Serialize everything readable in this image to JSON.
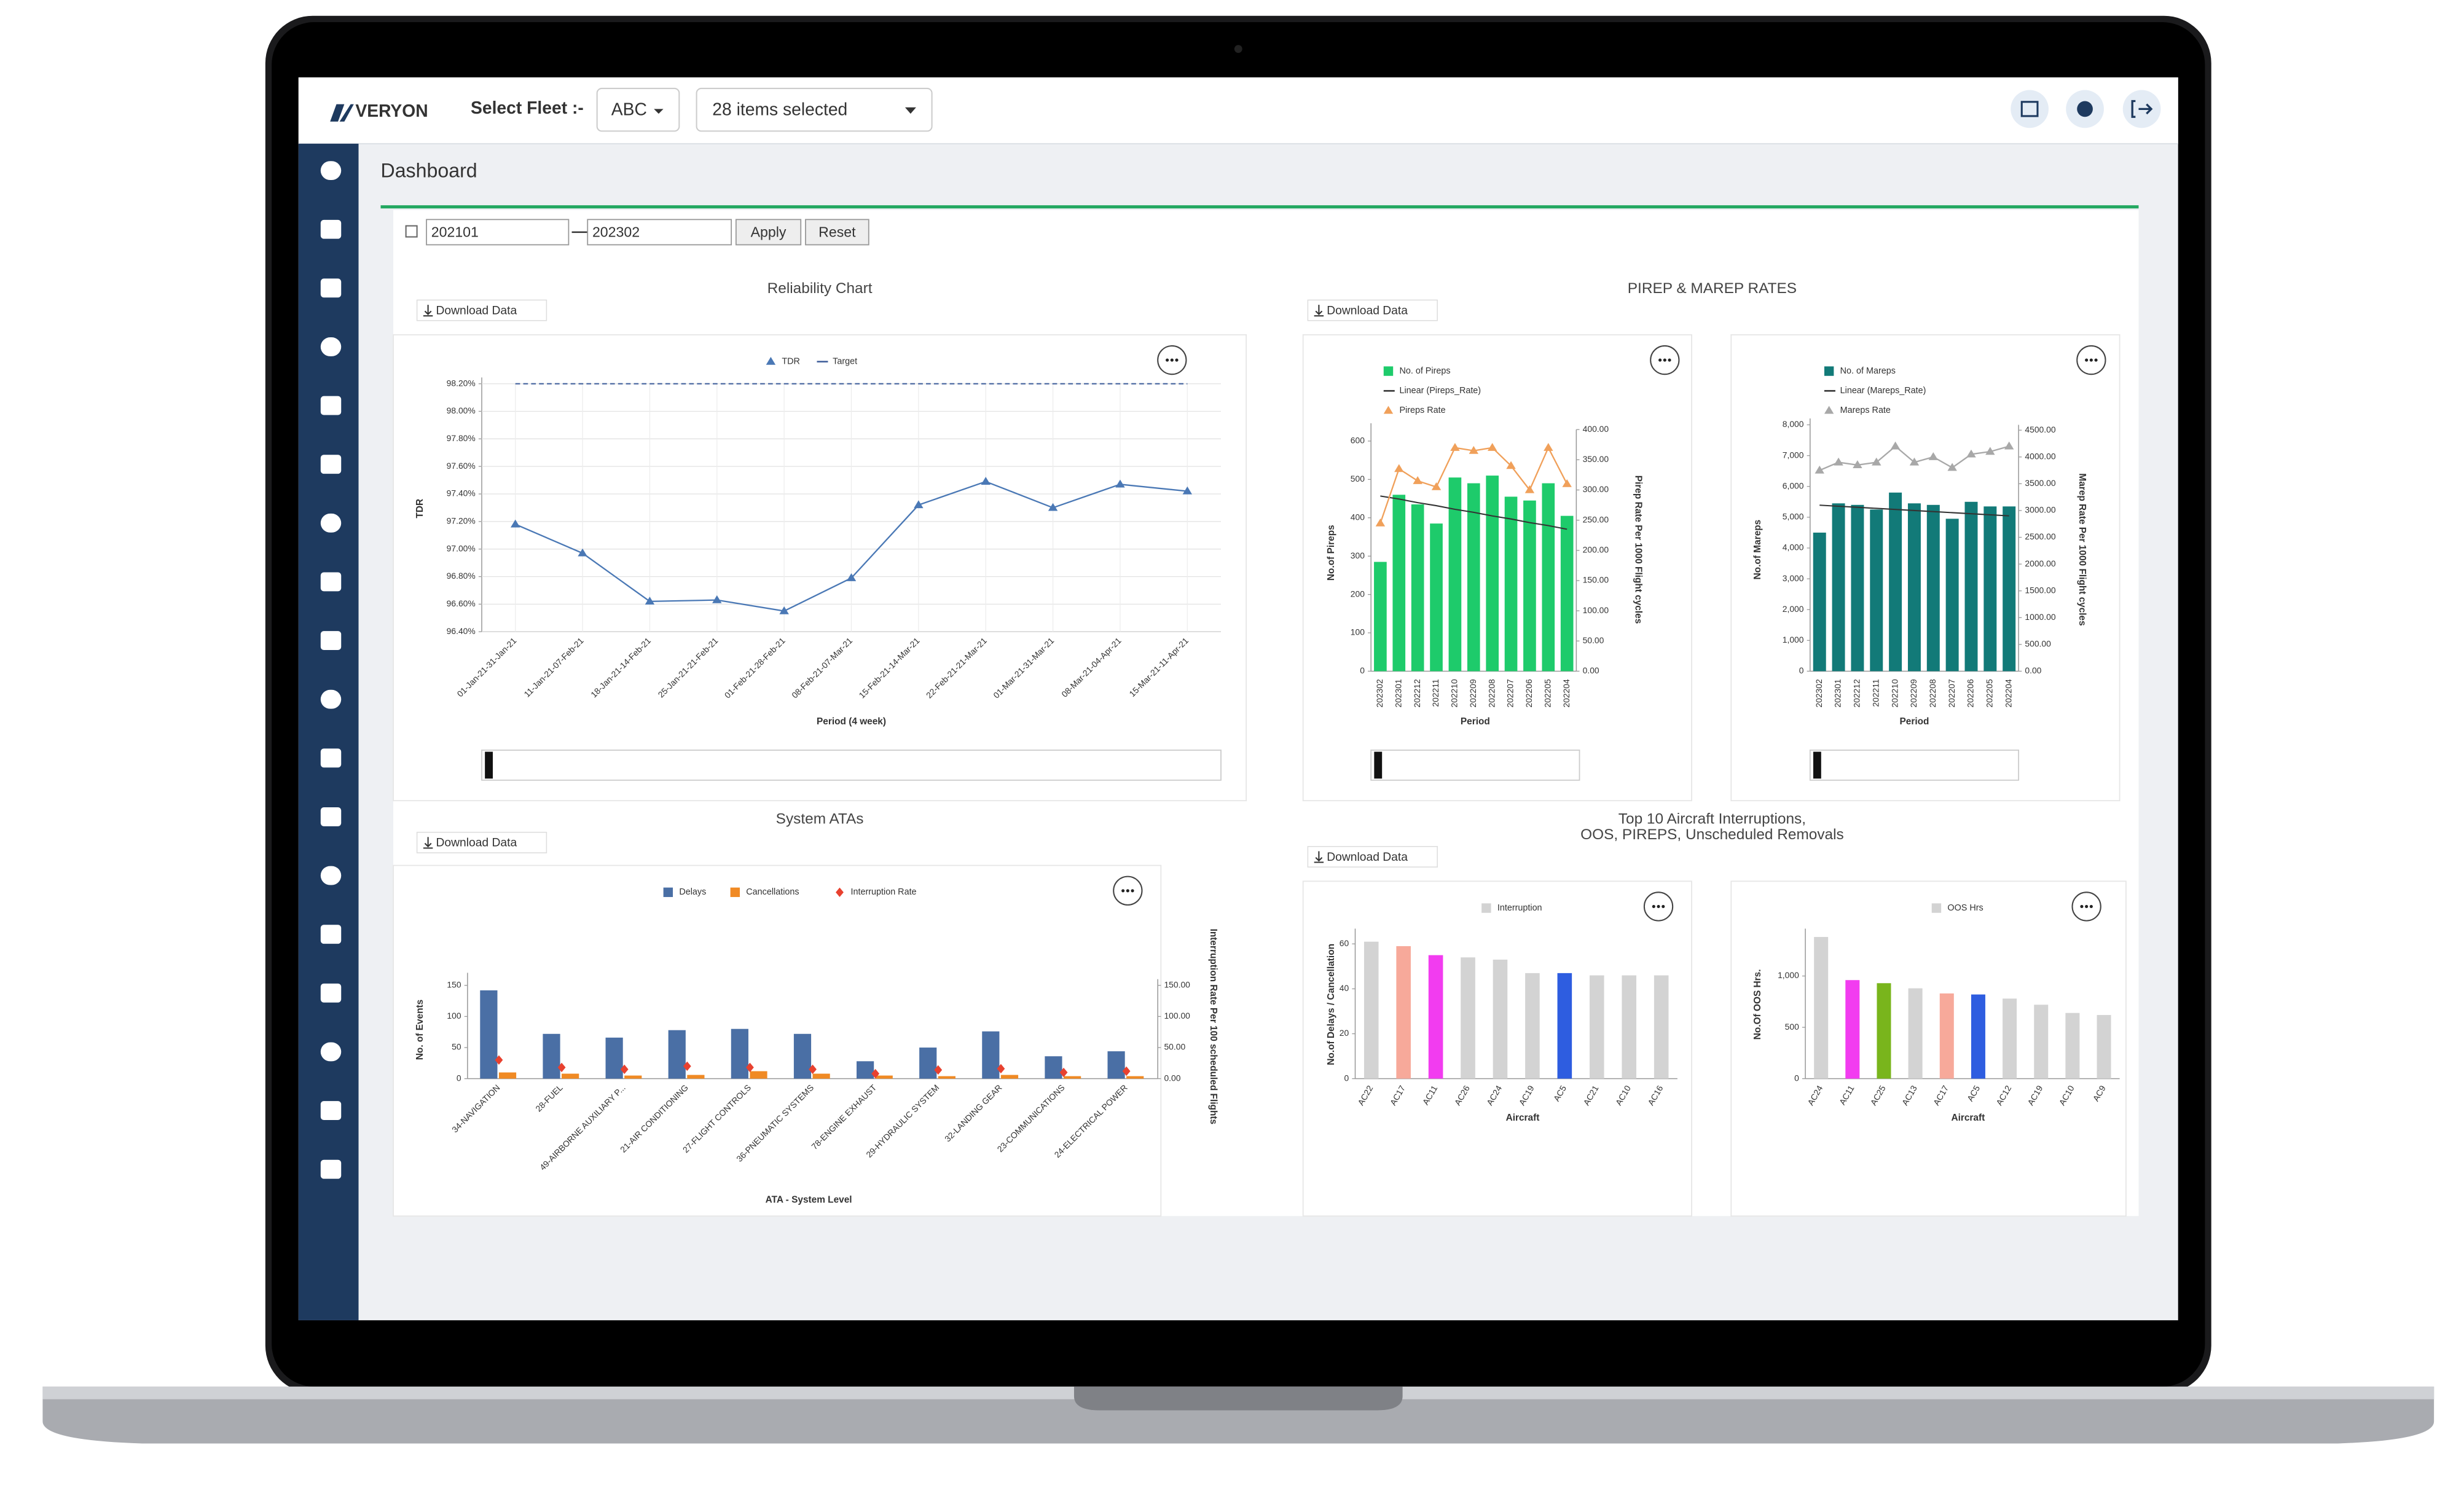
{
  "header": {
    "brand": "VERYON",
    "fleet_label": "Select Fleet :-",
    "fleet_value": "ABC",
    "items": "28 items selected"
  },
  "page_title": "Dashboard",
  "filter": {
    "from": "202101",
    "to": "202302",
    "apply": "Apply",
    "reset": "Reset"
  },
  "download_label": "Download Data",
  "panel_titles": {
    "rates": "PIREP & MAREP RATES",
    "top10": [
      "Top 10 Aircraft Interruptions,",
      "OOS, PIREPS, Unscheduled Removals"
    ]
  },
  "chart_data": [
    {
      "type": "line",
      "title": "Reliability Chart",
      "x_label": "Period (4 week)",
      "y_label": "TDR",
      "categories": [
        "01-Jan-21-31-Jan-21",
        "11-Jan-21-07-Feb-21",
        "18-Jan-21-14-Feb-21",
        "25-Jan-21-21-Feb-21",
        "01-Feb-21-28-Feb-21",
        "08-Feb-21-07-Mar-21",
        "15-Feb-21-14-Mar-21",
        "22-Feb-21-21-Mar-21",
        "01-Mar-21-31-Mar-21",
        "08-Mar-21-04-Apr-21",
        "15-Mar-21-11-Apr-21"
      ],
      "series": [
        {
          "name": "TDR",
          "kind": "line",
          "marker": "triangle",
          "color": "#4a78b5",
          "values": [
            97.18,
            96.97,
            96.62,
            96.63,
            96.55,
            96.79,
            97.32,
            97.49,
            97.3,
            97.47,
            97.42
          ]
        },
        {
          "name": "Target",
          "kind": "line",
          "dashed": true,
          "color": "#3a5a98",
          "values": [
            98.2,
            98.2,
            98.2,
            98.2,
            98.2,
            98.2,
            98.2,
            98.2,
            98.2,
            98.2,
            98.2
          ]
        }
      ],
      "ylim": [
        96.4,
        98.2
      ],
      "yticks": [
        {
          "value": 96.4,
          "label": "96.40%"
        },
        {
          "value": 96.6,
          "label": "96.60%"
        },
        {
          "value": 96.8,
          "label": "96.80%"
        },
        {
          "value": 97.0,
          "label": "97.00%"
        },
        {
          "value": 97.2,
          "label": "97.20%"
        },
        {
          "value": 97.4,
          "label": "97.40%"
        },
        {
          "value": 97.6,
          "label": "97.60%"
        },
        {
          "value": 97.8,
          "label": "97.80%"
        },
        {
          "value": 98.0,
          "label": "98.00%"
        },
        {
          "value": 98.2,
          "label": "98.20%"
        }
      ],
      "grid": true
    },
    {
      "type": "bar",
      "x_label": "Period",
      "y_label": "No.of Pireps",
      "y2_label": "Pirep Rate Per 1000 Flight cycles",
      "categories": [
        "202302",
        "202301",
        "202212",
        "202211",
        "202210",
        "202209",
        "202208",
        "202207",
        "202206",
        "202205",
        "202204"
      ],
      "series": [
        {
          "name": "No. of Pireps",
          "kind": "bar",
          "color": "#1ecb6b",
          "values": [
            285,
            460,
            435,
            385,
            505,
            490,
            510,
            455,
            445,
            490,
            405
          ]
        },
        {
          "name": "Linear (Pireps_Rate)",
          "kind": "line",
          "axis": "y2",
          "color": "#333333",
          "values": [
            290,
            285,
            279,
            274,
            268,
            263,
            257,
            252,
            246,
            241,
            235
          ]
        },
        {
          "name": "Pireps Rate",
          "kind": "line",
          "marker": "triangle",
          "axis": "y2",
          "color": "#f0a05a",
          "values": [
            245,
            335,
            315,
            305,
            370,
            365,
            370,
            340,
            300,
            370,
            310
          ]
        }
      ],
      "ylim": [
        0,
        630
      ],
      "yticks": [
        0,
        100,
        200,
        300,
        400,
        500,
        600
      ],
      "y2lim": [
        0,
        400
      ],
      "y2ticks": [
        {
          "value": 0,
          "label": "0.00"
        },
        {
          "value": 50,
          "label": "50.00"
        },
        {
          "value": 100,
          "label": "100.00"
        },
        {
          "value": 150,
          "label": "150.00"
        },
        {
          "value": 200,
          "label": "200.00"
        },
        {
          "value": 250,
          "label": "250.00"
        },
        {
          "value": 300,
          "label": "300.00"
        },
        {
          "value": 350,
          "label": "350.00"
        },
        {
          "value": 400,
          "label": "400.00"
        }
      ],
      "grid": false
    },
    {
      "type": "bar",
      "x_label": "Period",
      "y_label": "No.of Mareps",
      "y2_label": "Marep Rate Per 1000 Flight cycles",
      "categories": [
        "202302",
        "202301",
        "202212",
        "202211",
        "202210",
        "202209",
        "202208",
        "202207",
        "202206",
        "202205",
        "202204"
      ],
      "series": [
        {
          "name": "No. of Mareps",
          "kind": "bar",
          "color": "#127a78",
          "values": [
            4500,
            5450,
            5400,
            5250,
            5800,
            5450,
            5400,
            4950,
            5500,
            5350,
            5350
          ]
        },
        {
          "name": "Linear (Mareps_Rate)",
          "kind": "line",
          "axis": "y2",
          "color": "#333333",
          "values": [
            3100,
            3080,
            3060,
            3040,
            3020,
            3000,
            2980,
            2960,
            2940,
            2920,
            2900
          ]
        },
        {
          "name": "Mareps Rate",
          "kind": "line",
          "marker": "triangle",
          "axis": "y2",
          "color": "#a8a8a8",
          "values": [
            3750,
            3900,
            3850,
            3900,
            4200,
            3900,
            4000,
            3800,
            4050,
            4100,
            4200
          ]
        }
      ],
      "ylim": [
        0,
        8000
      ],
      "yticks": [
        0,
        {
          "value": 1000,
          "label": "1,000"
        },
        {
          "value": 2000,
          "label": "2,000"
        },
        {
          "value": 3000,
          "label": "3,000"
        },
        {
          "value": 4000,
          "label": "4,000"
        },
        {
          "value": 5000,
          "label": "5,000"
        },
        {
          "value": 6000,
          "label": "6,000"
        },
        {
          "value": 7000,
          "label": "7,000"
        },
        {
          "value": 8000,
          "label": "8,000"
        }
      ],
      "y2lim": [
        0,
        4600
      ],
      "y2ticks": [
        {
          "value": 0,
          "label": "0.00"
        },
        {
          "value": 500,
          "label": "500.00"
        },
        {
          "value": 1000,
          "label": "1000.00"
        },
        {
          "value": 1500,
          "label": "1500.00"
        },
        {
          "value": 2000,
          "label": "2000.00"
        },
        {
          "value": 2500,
          "label": "2500.00"
        },
        {
          "value": 3000,
          "label": "3000.00"
        },
        {
          "value": 3500,
          "label": "3500.00"
        },
        {
          "value": 4000,
          "label": "4000.00"
        },
        {
          "value": 4500,
          "label": "4500.00"
        }
      ],
      "grid": false
    },
    {
      "type": "bar",
      "title": "System ATAs",
      "x_label": "ATA - System Level",
      "y_label": "No. of Events",
      "y2_label": "Interruption Rate Per 100 scheduled Flights",
      "categories": [
        "34-NAVIGATION",
        "28-FUEL",
        "49-AIRBORNE AUXILIARY P...",
        "21-AIR CONDITIONING",
        "27-FLIGHT CONTROLS",
        "36-PNEUMATIC SYSTEMS",
        "78-ENGINE EXHAUST",
        "29-HYDRAULIC SYSTEM",
        "32-LANDING GEAR",
        "23-COMMUNICATIONS",
        "24-ELECTRICAL POWER"
      ],
      "series": [
        {
          "name": "Delays",
          "kind": "bar",
          "color": "#4a6fa5",
          "values": [
            142,
            72,
            66,
            78,
            80,
            72,
            28,
            50,
            76,
            36,
            44
          ]
        },
        {
          "name": "Cancellations",
          "kind": "bar",
          "color": "#f08a24",
          "values": [
            10,
            8,
            5,
            6,
            12,
            8,
            5,
            4,
            6,
            4,
            4
          ]
        },
        {
          "name": "Interruption Rate",
          "kind": "points",
          "marker": "diamond",
          "axis": "y2",
          "color": "#e8412f",
          "values": [
            30,
            18,
            15,
            20,
            18,
            15,
            8,
            14,
            16,
            10,
            12
          ]
        }
      ],
      "ylim": [
        0,
        160
      ],
      "yticks": [
        0,
        50,
        100,
        150
      ],
      "y2lim": [
        0,
        160
      ],
      "y2ticks": [
        {
          "value": 0,
          "label": "0.00"
        },
        {
          "value": 50,
          "label": "50.00"
        },
        {
          "value": 100,
          "label": "100.00"
        },
        {
          "value": 150,
          "label": "150.00"
        }
      ],
      "grid": false
    },
    {
      "type": "bar",
      "x_label": "Aircraft",
      "y_label": "No.of Delays / Cancellation",
      "categories": [
        "AC22",
        "AC17",
        "AC11",
        "AC26",
        "AC24",
        "AC19",
        "AC5",
        "AC21",
        "AC10",
        "AC16"
      ],
      "series": [
        {
          "name": "Interruption",
          "kind": "bar",
          "color": "#d3d3d3",
          "colors": [
            "#d3d3d3",
            "#f7a99a",
            "#f23cf0",
            "#d3d3d3",
            "#d3d3d3",
            "#d3d3d3",
            "#2e5de0",
            "#d3d3d3",
            "#d3d3d3",
            "#d3d3d3"
          ],
          "values": [
            61,
            59,
            55,
            54,
            53,
            47,
            47,
            46,
            46,
            46
          ]
        }
      ],
      "ylim": [
        0,
        64
      ],
      "yticks": [
        0,
        20,
        40,
        60
      ],
      "grid": false
    },
    {
      "type": "bar",
      "x_label": "Aircraft",
      "y_label": "No.Of OOS Hrs.",
      "categories": [
        "AC24",
        "AC11",
        "AC25",
        "AC13",
        "AC17",
        "AC5",
        "AC12",
        "AC19",
        "AC10",
        "AC9"
      ],
      "series": [
        {
          "name": "OOS Hrs",
          "kind": "bar",
          "color": "#d3d3d3",
          "colors": [
            "#d3d3d3",
            "#f23cf0",
            "#79b51c",
            "#d3d3d3",
            "#f7a99a",
            "#2e5de0",
            "#d3d3d3",
            "#d3d3d3",
            "#d3d3d3",
            "#d3d3d3"
          ],
          "values": [
            1380,
            960,
            930,
            880,
            830,
            820,
            780,
            720,
            640,
            620
          ]
        }
      ],
      "ylim": [
        0,
        1400
      ],
      "yticks": [
        0,
        500,
        {
          "value": 1000,
          "label": "1,000"
        }
      ],
      "grid": false
    }
  ]
}
